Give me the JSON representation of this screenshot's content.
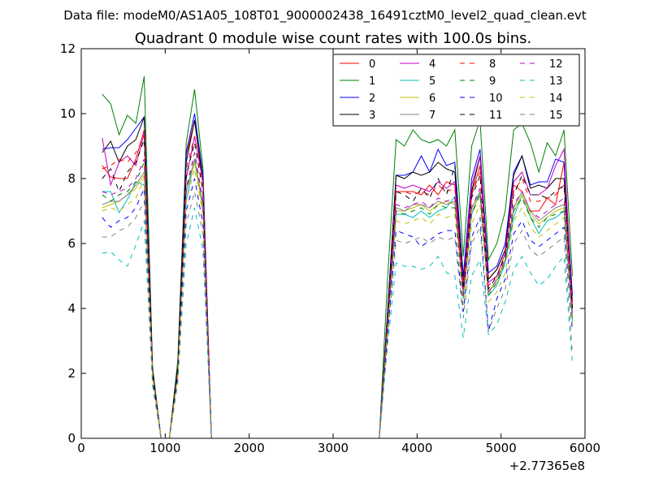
{
  "chart_data": {
    "type": "line",
    "suptitle": "Data file: modeM0/AS1A05_108T01_9000002438_16491cztM0_level2_quad_clean.evt",
    "title": "Quadrant 0 module wise count rates with 100.0s bins.",
    "xlabel": "",
    "ylabel": "",
    "x_offset_label": "+2.77365e8",
    "xlim": [
      0,
      6000
    ],
    "ylim": [
      0,
      12
    ],
    "xticks": [
      "0",
      "1000",
      "2000",
      "3000",
      "4000",
      "5000",
      "6000"
    ],
    "yticks": [
      "0",
      "2",
      "4",
      "6",
      "8",
      "10",
      "12"
    ],
    "grid": false,
    "legend_position": "top-right",
    "x": [
      250,
      350,
      450,
      550,
      650,
      750,
      850,
      950,
      1050,
      1150,
      1250,
      1350,
      1450,
      1550,
      1650,
      3450,
      3550,
      3650,
      3750,
      3850,
      3950,
      4050,
      4150,
      4250,
      4350,
      4450,
      4550,
      4650,
      4750,
      4850,
      4950,
      5050,
      5150,
      5250,
      5350,
      5450,
      5550,
      5650,
      5750,
      5850
    ],
    "series": [
      {
        "name": "0",
        "color": "#ff0000",
        "dash": "solid",
        "values": [
          8.4,
          8.05,
          8.0,
          8.0,
          8.6,
          9.5,
          2.0,
          0.0,
          0.0,
          2.0,
          8.7,
          9.8,
          7.8,
          0.0,
          0.0,
          0.0,
          0.0,
          3.5,
          7.6,
          7.6,
          7.6,
          7.5,
          7.8,
          7.5,
          7.9,
          7.8,
          4.5,
          7.5,
          8.4,
          4.9,
          5.2,
          5.8,
          7.8,
          7.6,
          7.0,
          7.0,
          7.4,
          7.2,
          8.5,
          4.0
        ]
      },
      {
        "name": "1",
        "color": "#008000",
        "dash": "solid",
        "values": [
          10.6,
          10.3,
          9.35,
          9.95,
          9.7,
          11.15,
          2.2,
          0.0,
          0.0,
          2.4,
          9.1,
          10.75,
          8.3,
          0.0,
          0.0,
          0.0,
          0.0,
          5.0,
          9.2,
          9.0,
          9.5,
          9.2,
          9.1,
          9.2,
          9.0,
          9.5,
          5.6,
          9.0,
          9.8,
          5.5,
          6.0,
          7.0,
          9.5,
          9.7,
          9.1,
          8.2,
          9.1,
          8.7,
          9.5,
          5.0
        ]
      },
      {
        "name": "2",
        "color": "#0000ff",
        "dash": "solid",
        "values": [
          8.9,
          8.95,
          8.95,
          9.2,
          9.55,
          9.9,
          2.1,
          0.0,
          0.0,
          2.2,
          8.8,
          10.0,
          8.1,
          0.0,
          0.0,
          0.0,
          0.0,
          4.0,
          8.1,
          8.1,
          8.2,
          8.7,
          8.2,
          8.9,
          8.4,
          8.5,
          5.0,
          8.0,
          8.9,
          5.1,
          5.3,
          6.0,
          8.2,
          8.7,
          7.8,
          7.9,
          7.9,
          8.6,
          8.5,
          4.4
        ]
      },
      {
        "name": "3",
        "color": "#000000",
        "dash": "solid",
        "values": [
          8.8,
          9.15,
          8.5,
          9.0,
          9.2,
          9.9,
          2.1,
          0.0,
          0.0,
          2.2,
          8.5,
          9.8,
          7.9,
          0.0,
          0.0,
          0.0,
          0.0,
          3.9,
          8.1,
          8.0,
          8.2,
          8.1,
          8.2,
          8.5,
          8.3,
          8.2,
          4.8,
          7.6,
          8.7,
          4.9,
          5.2,
          5.8,
          8.1,
          8.7,
          7.7,
          7.8,
          7.7,
          8.0,
          8.0,
          4.2
        ]
      },
      {
        "name": "4",
        "color": "#bf00bf",
        "dash": "solid",
        "values": [
          9.25,
          7.8,
          8.5,
          8.7,
          8.4,
          9.4,
          2.0,
          0.0,
          0.0,
          2.0,
          8.0,
          9.3,
          7.9,
          0.0,
          0.0,
          0.0,
          0.0,
          3.7,
          7.8,
          7.7,
          7.8,
          7.7,
          7.6,
          7.9,
          7.7,
          7.9,
          4.7,
          7.8,
          8.7,
          4.8,
          5.0,
          5.7,
          7.9,
          8.2,
          7.5,
          7.5,
          7.7,
          8.4,
          8.9,
          4.0
        ]
      },
      {
        "name": "5",
        "color": "#00bfbf",
        "dash": "solid",
        "values": [
          7.6,
          7.6,
          6.95,
          7.35,
          7.9,
          7.8,
          1.9,
          0.0,
          0.0,
          2.0,
          7.3,
          8.6,
          7.0,
          0.0,
          0.0,
          0.0,
          0.0,
          3.4,
          6.9,
          6.9,
          6.8,
          7.0,
          6.8,
          7.0,
          7.1,
          7.45,
          4.3,
          6.9,
          7.6,
          4.4,
          4.7,
          5.4,
          6.8,
          7.5,
          6.8,
          6.3,
          6.7,
          6.8,
          7.0,
          3.6
        ]
      },
      {
        "name": "6",
        "color": "#bfbf00",
        "dash": "solid",
        "values": [
          7.1,
          7.2,
          7.3,
          7.5,
          7.7,
          8.1,
          1.9,
          0.0,
          0.0,
          2.0,
          7.6,
          8.5,
          7.1,
          0.0,
          0.0,
          0.0,
          0.0,
          3.5,
          7.0,
          7.0,
          7.1,
          7.2,
          7.0,
          7.2,
          7.3,
          7.2,
          4.4,
          7.0,
          7.5,
          4.5,
          4.8,
          5.5,
          7.0,
          7.5,
          6.9,
          6.6,
          6.8,
          7.0,
          7.1,
          3.7
        ]
      },
      {
        "name": "7",
        "color": "#808080",
        "dash": "solid",
        "values": [
          7.2,
          7.3,
          7.3,
          7.5,
          7.8,
          8.2,
          2.0,
          0.0,
          0.0,
          2.0,
          7.6,
          8.6,
          7.2,
          0.0,
          0.0,
          0.0,
          0.0,
          3.6,
          7.1,
          7.0,
          7.2,
          7.2,
          7.1,
          7.3,
          7.2,
          7.3,
          4.5,
          7.1,
          7.6,
          4.5,
          4.9,
          5.5,
          7.1,
          7.6,
          7.0,
          6.7,
          6.9,
          7.1,
          7.2,
          3.8
        ]
      },
      {
        "name": "8",
        "color": "#ff0000",
        "dash": "dashed",
        "values": [
          8.3,
          8.4,
          8.6,
          8.5,
          8.8,
          9.3,
          2.0,
          0.0,
          0.0,
          2.1,
          8.3,
          9.3,
          7.8,
          0.0,
          0.0,
          0.0,
          0.0,
          3.7,
          7.6,
          7.6,
          7.5,
          7.6,
          7.5,
          7.8,
          7.6,
          7.7,
          4.6,
          7.5,
          8.2,
          4.7,
          5.0,
          5.7,
          7.6,
          8.0,
          7.3,
          7.3,
          7.4,
          7.5,
          7.8,
          4.1
        ]
      },
      {
        "name": "9",
        "color": "#008000",
        "dash": "dashed",
        "values": [
          7.5,
          7.3,
          7.5,
          7.6,
          7.9,
          8.5,
          1.9,
          0.0,
          0.0,
          2.0,
          7.6,
          8.8,
          7.3,
          0.0,
          0.0,
          0.0,
          0.0,
          3.4,
          7.0,
          6.9,
          7.0,
          7.1,
          6.9,
          7.2,
          7.1,
          7.1,
          4.3,
          6.9,
          7.5,
          4.4,
          4.8,
          5.4,
          7.0,
          7.4,
          6.8,
          6.5,
          6.8,
          6.9,
          7.0,
          3.6
        ]
      },
      {
        "name": "10",
        "color": "#0000ff",
        "dash": "dashed",
        "values": [
          6.8,
          6.5,
          6.7,
          6.8,
          7.1,
          7.7,
          1.8,
          0.0,
          0.0,
          1.9,
          7.0,
          8.0,
          6.6,
          0.0,
          0.0,
          0.0,
          0.0,
          3.2,
          6.4,
          6.3,
          6.2,
          5.9,
          6.1,
          6.3,
          6.4,
          6.4,
          3.9,
          6.2,
          6.8,
          3.3,
          4.3,
          4.9,
          6.3,
          6.7,
          6.1,
          5.9,
          6.1,
          6.3,
          6.5,
          3.3
        ]
      },
      {
        "name": "11",
        "color": "#000000",
        "dash": "dashed",
        "values": [
          8.0,
          8.3,
          7.6,
          8.2,
          8.5,
          9.2,
          2.0,
          0.0,
          0.0,
          2.1,
          8.1,
          9.1,
          7.6,
          0.0,
          0.0,
          0.0,
          0.0,
          3.6,
          7.6,
          7.5,
          7.3,
          7.7,
          7.4,
          8.0,
          7.5,
          8.4,
          4.6,
          7.4,
          8.1,
          4.6,
          5.0,
          5.6,
          7.5,
          8.1,
          7.5,
          7.5,
          7.4,
          7.6,
          7.8,
          4.0
        ]
      },
      {
        "name": "12",
        "color": "#bf00bf",
        "dash": "dashed",
        "values": [
          7.6,
          7.5,
          7.6,
          7.7,
          8.0,
          8.6,
          2.0,
          0.0,
          0.0,
          2.0,
          7.7,
          8.8,
          7.3,
          0.0,
          0.0,
          0.0,
          0.0,
          3.5,
          7.2,
          7.1,
          7.2,
          7.3,
          7.1,
          7.4,
          7.3,
          7.4,
          4.4,
          7.1,
          7.7,
          4.5,
          4.9,
          5.5,
          7.2,
          7.6,
          7.0,
          6.8,
          7.0,
          7.2,
          7.4,
          3.8
        ]
      },
      {
        "name": "13",
        "color": "#00bfbf",
        "dash": "dashed",
        "values": [
          5.7,
          5.75,
          5.5,
          5.3,
          5.95,
          6.7,
          1.6,
          0.0,
          0.0,
          1.7,
          6.0,
          7.1,
          5.8,
          0.0,
          0.0,
          0.0,
          0.0,
          2.9,
          5.4,
          5.3,
          5.3,
          5.2,
          5.3,
          5.6,
          5.1,
          5.0,
          3.1,
          5.0,
          5.5,
          3.2,
          3.5,
          4.2,
          5.2,
          5.6,
          5.1,
          4.7,
          4.9,
          5.3,
          5.6,
          2.3
        ]
      },
      {
        "name": "14",
        "color": "#bfbf00",
        "dash": "dashed",
        "values": [
          7.0,
          7.1,
          7.0,
          7.2,
          7.4,
          8.0,
          1.9,
          0.0,
          0.0,
          1.9,
          7.3,
          8.3,
          6.9,
          0.0,
          0.0,
          0.0,
          0.0,
          3.4,
          6.7,
          6.6,
          6.7,
          6.8,
          6.6,
          6.9,
          6.8,
          6.9,
          4.1,
          6.6,
          7.2,
          4.2,
          4.5,
          5.1,
          6.7,
          7.1,
          6.5,
          6.2,
          6.4,
          6.6,
          6.8,
          3.5
        ]
      },
      {
        "name": "15",
        "color": "#808080",
        "dash": "dashed",
        "values": [
          6.2,
          6.2,
          6.4,
          6.5,
          6.8,
          7.3,
          1.7,
          0.0,
          0.0,
          1.8,
          6.6,
          7.6,
          6.3,
          0.0,
          0.0,
          0.0,
          0.0,
          3.1,
          6.1,
          6.0,
          6.1,
          6.2,
          6.0,
          6.2,
          6.1,
          6.2,
          3.7,
          6.0,
          6.5,
          3.3,
          4.0,
          4.6,
          6.0,
          6.4,
          5.8,
          5.6,
          5.8,
          6.0,
          6.2,
          2.6
        ]
      }
    ]
  }
}
